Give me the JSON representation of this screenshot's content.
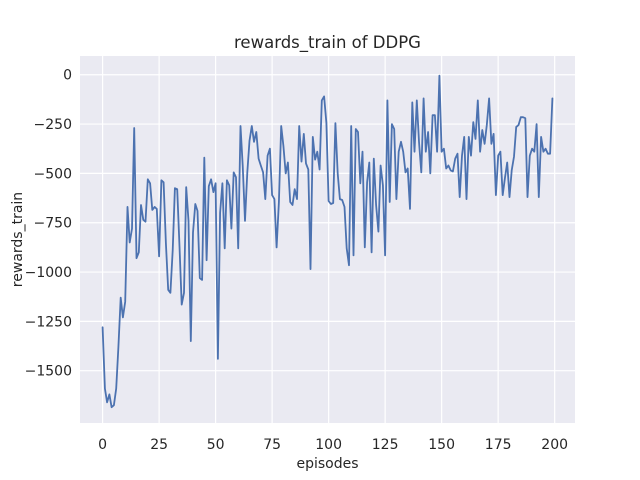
{
  "figure": {
    "background": "#ffffff"
  },
  "chart_data": {
    "type": "line",
    "title": "rewards_train of DDPG",
    "xlabel": "episodes",
    "ylabel": "rewards_train",
    "xlim": [
      -10,
      209
    ],
    "ylim": [
      -1765,
      95
    ],
    "grid": true,
    "legend": false,
    "colors": {
      "plot_bg": "#eaeaf2",
      "grid": "#ffffff",
      "line": "#4c72b0",
      "text": "#262626"
    },
    "xticks": {
      "values": [
        0,
        25,
        50,
        75,
        100,
        125,
        150,
        175,
        200
      ],
      "labels": [
        "0",
        "25",
        "50",
        "75",
        "100",
        "125",
        "150",
        "175",
        "200"
      ]
    },
    "yticks": {
      "values": [
        0,
        -250,
        -500,
        -750,
        -1000,
        -1250,
        -1500
      ],
      "labels": [
        "0",
        "−250",
        "−500",
        "−750",
        "−1000",
        "−1250",
        "−1500"
      ]
    },
    "x_start": 0,
    "x_step": 1,
    "n_points": 200,
    "series": [
      {
        "name": "rewards_train",
        "color": "#4c72b0",
        "values": [
          -1280,
          -1590,
          -1660,
          -1620,
          -1685,
          -1675,
          -1590,
          -1380,
          -1130,
          -1230,
          -1150,
          -670,
          -850,
          -780,
          -270,
          -930,
          -900,
          -660,
          -735,
          -745,
          -530,
          -550,
          -685,
          -670,
          -680,
          -920,
          -535,
          -545,
          -855,
          -1090,
          -1105,
          -890,
          -575,
          -580,
          -870,
          -1165,
          -1105,
          -570,
          -740,
          -1350,
          -800,
          -655,
          -690,
          -1030,
          -1040,
          -420,
          -940,
          -565,
          -530,
          -595,
          -550,
          -1440,
          -700,
          -550,
          -880,
          -535,
          -560,
          -780,
          -495,
          -520,
          -880,
          -260,
          -460,
          -740,
          -495,
          -335,
          -260,
          -340,
          -290,
          -425,
          -460,
          -495,
          -630,
          -410,
          -375,
          -610,
          -630,
          -875,
          -645,
          -260,
          -360,
          -500,
          -445,
          -645,
          -660,
          -580,
          -630,
          -260,
          -440,
          -300,
          -450,
          -480,
          -985,
          -315,
          -430,
          -390,
          -480,
          -130,
          -110,
          -245,
          -640,
          -655,
          -650,
          -245,
          -500,
          -630,
          -635,
          -670,
          -880,
          -965,
          -260,
          -915,
          -275,
          -290,
          -550,
          -390,
          -875,
          -545,
          -445,
          -900,
          -425,
          -660,
          -795,
          -460,
          -560,
          -915,
          -130,
          -645,
          -250,
          -275,
          -630,
          -390,
          -340,
          -390,
          -495,
          -475,
          -680,
          -140,
          -390,
          -130,
          -340,
          -495,
          -120,
          -390,
          -290,
          -500,
          -205,
          -205,
          -390,
          -5,
          -390,
          -375,
          -475,
          -460,
          -485,
          -490,
          -425,
          -400,
          -620,
          -410,
          -315,
          -630,
          -315,
          -410,
          -240,
          -325,
          -130,
          -390,
          -280,
          -350,
          -255,
          -120,
          -350,
          -300,
          -610,
          -410,
          -390,
          -610,
          -525,
          -445,
          -620,
          -485,
          -415,
          -265,
          -255,
          -215,
          -215,
          -220,
          -620,
          -410,
          -375,
          -390,
          -250,
          -620,
          -315,
          -390,
          -375,
          -400,
          -400,
          -120
        ]
      }
    ]
  }
}
